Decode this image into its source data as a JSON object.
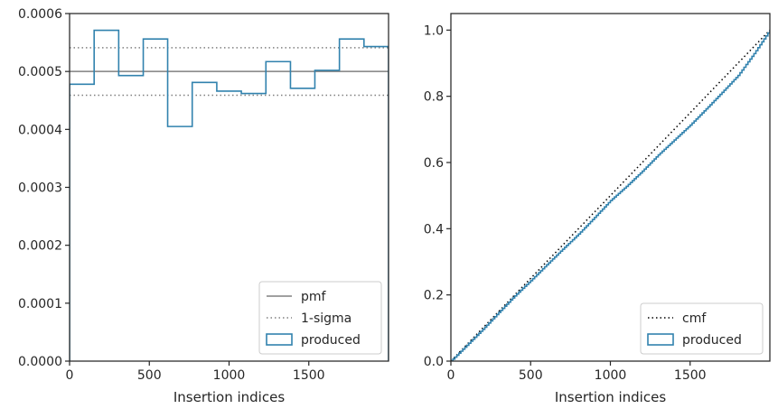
{
  "chart_data": [
    {
      "type": "histogram",
      "xlabel": "Insertion indices",
      "ylabel": "",
      "xlim": [
        0,
        2000
      ],
      "ylim": [
        0,
        0.0006
      ],
      "xticks": [
        0,
        500,
        1000,
        1500
      ],
      "yticks": [
        0.0,
        0.0001,
        0.0002,
        0.0003,
        0.0004,
        0.0005,
        0.0006
      ],
      "ytick_labels": [
        "0.0000",
        "0.0001",
        "0.0002",
        "0.0003",
        "0.0004",
        "0.0005",
        "0.0006"
      ],
      "pmf": 0.0005,
      "sigma_low": 0.000459,
      "sigma_high": 0.000541,
      "bin_edges": [
        0,
        154,
        308,
        462,
        615,
        769,
        923,
        1077,
        1231,
        1385,
        1538,
        1692,
        1846,
        2000
      ],
      "bin_values": [
        0.000478,
        0.000571,
        0.000493,
        0.000556,
        0.000405,
        0.000481,
        0.000466,
        0.000462,
        0.000517,
        0.000471,
        0.000502,
        0.000556,
        0.000543
      ],
      "legend": {
        "placement": "lower-right",
        "entries": [
          {
            "label": "pmf",
            "style": "solid",
            "color": "#808080"
          },
          {
            "label": "1-sigma",
            "style": "dotted",
            "color": "#808080"
          },
          {
            "label": "produced",
            "style": "box",
            "color": "#3182ae"
          }
        ]
      }
    },
    {
      "type": "line",
      "xlabel": "Insertion indices",
      "ylabel": "",
      "xlim": [
        0,
        2000
      ],
      "ylim": [
        0,
        1.05
      ],
      "xticks": [
        0,
        500,
        1000,
        1500
      ],
      "yticks": [
        0.0,
        0.2,
        0.4,
        0.6,
        0.8,
        1.0
      ],
      "ytick_labels": [
        "0.0",
        "0.2",
        "0.4",
        "0.6",
        "0.8",
        "1.0"
      ],
      "series": [
        {
          "name": "cmf",
          "style": "dotted",
          "color": "#000000",
          "x": [
            0,
            2000
          ],
          "y": [
            0,
            1
          ]
        },
        {
          "name": "produced",
          "style": "step",
          "color": "#3182ae",
          "x": [
            0,
            100,
            200,
            300,
            400,
            500,
            600,
            700,
            800,
            900,
            1000,
            1100,
            1200,
            1300,
            1400,
            1500,
            1600,
            1700,
            1800,
            1900,
            2000
          ],
          "y": [
            0,
            0.048,
            0.096,
            0.147,
            0.197,
            0.243,
            0.291,
            0.338,
            0.384,
            0.434,
            0.485,
            0.528,
            0.574,
            0.623,
            0.668,
            0.713,
            0.762,
            0.812,
            0.863,
            0.929,
            1.0
          ]
        }
      ],
      "legend": {
        "placement": "lower-right",
        "entries": [
          {
            "label": "cmf",
            "style": "dotted",
            "color": "#000000"
          },
          {
            "label": "produced",
            "style": "box",
            "color": "#3182ae"
          }
        ]
      }
    }
  ]
}
